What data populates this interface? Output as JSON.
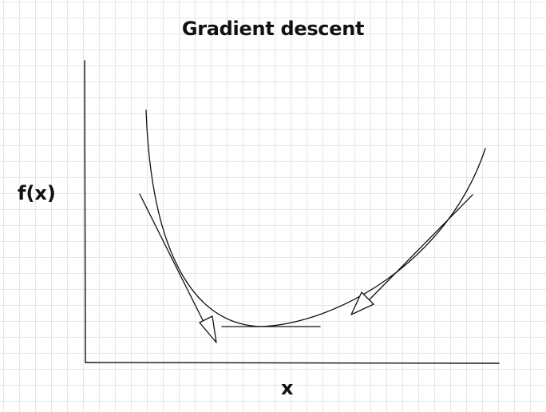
{
  "diagram": {
    "title": "Gradient descent",
    "x_axis_label": "x",
    "y_axis_label": "f(x)",
    "elements": [
      "convex curve f(x)",
      "tangent line on left slope with downward arrow",
      "tangent line on right slope with downward arrow",
      "horizontal tangent line at minimum"
    ]
  }
}
